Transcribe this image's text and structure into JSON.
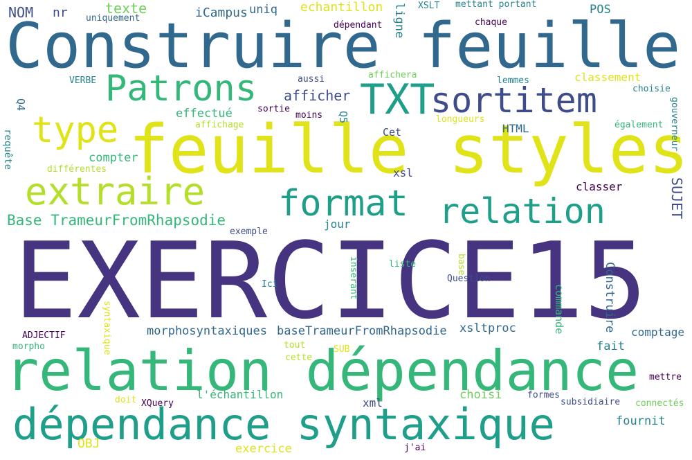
{
  "palette": {
    "indigo": "#463480",
    "purple": "#440154",
    "blue": "#31688e",
    "slate": "#3e4c8a",
    "teal": "#26828e",
    "green": "#1f9e89",
    "emerald": "#35b779",
    "lime": "#6ece58",
    "yellowgreen": "#b5de2b",
    "yellow": "#dfe318"
  },
  "words": [
    {
      "text": "EXERCICE15",
      "color": "#463480"
    },
    {
      "text": "Construire feuille",
      "color": "#31688e"
    },
    {
      "text": "feuille styles",
      "color": "#dfe318"
    },
    {
      "text": "relation dépendance",
      "color": "#35b779"
    },
    {
      "text": "dépendance syntaxique",
      "color": "#1f9e89"
    },
    {
      "text": "Patrons",
      "color": "#35b779"
    },
    {
      "text": "TXT",
      "color": "#1f9e89"
    },
    {
      "text": "sortitem",
      "color": "#3e4c8a"
    },
    {
      "text": "type",
      "color": "#dfe318"
    },
    {
      "text": "extraire",
      "color": "#b5de2b"
    },
    {
      "text": "format",
      "color": "#1f9e89"
    },
    {
      "text": "relation",
      "color": "#1f9e89"
    },
    {
      "text": "Base TrameurFromRhapsodie",
      "color": "#35b779"
    },
    {
      "text": "NOM",
      "color": "#3e4c8a"
    },
    {
      "text": "nr",
      "color": "#3e4c8a"
    },
    {
      "text": "texte",
      "color": "#6ece58"
    },
    {
      "text": "iCampus",
      "color": "#31688e"
    },
    {
      "text": "uniq",
      "color": "#31688e"
    },
    {
      "text": "echantillon",
      "color": "#dfe318"
    },
    {
      "text": "ligne",
      "color": "#26828e"
    },
    {
      "text": "XSLT",
      "color": "#26828e"
    },
    {
      "text": "mettant portant",
      "color": "#26828e"
    },
    {
      "text": "POS",
      "color": "#26828e"
    },
    {
      "text": "uniquement",
      "color": "#31688e"
    },
    {
      "text": "dépendant",
      "color": "#440154"
    },
    {
      "text": "chaque",
      "color": "#440154"
    },
    {
      "text": "afficher",
      "color": "#3e4c8a"
    },
    {
      "text": "classement",
      "color": "#dfe318"
    },
    {
      "text": "VERBE",
      "color": "#26828e"
    },
    {
      "text": "aussi",
      "color": "#3e4c8a"
    },
    {
      "text": "affichera",
      "color": "#6ece58"
    },
    {
      "text": "lemmes",
      "color": "#26828e"
    },
    {
      "text": "choisie",
      "color": "#26828e"
    },
    {
      "text": "Q4",
      "color": "#31688e"
    },
    {
      "text": "effectué",
      "color": "#35b779"
    },
    {
      "text": "sortie",
      "color": "#440154"
    },
    {
      "text": "moins",
      "color": "#440154"
    },
    {
      "text": "Q5",
      "color": "#26828e"
    },
    {
      "text": "longueurs",
      "color": "#dfe318"
    },
    {
      "text": "gouverneur",
      "color": "#26828e"
    },
    {
      "text": "affichage",
      "color": "#b5de2b"
    },
    {
      "text": "Cet",
      "color": "#3e4c8a"
    },
    {
      "text": "HTML",
      "color": "#31688e"
    },
    {
      "text": "également",
      "color": "#35b779"
    },
    {
      "text": "requête",
      "color": "#26828e"
    },
    {
      "text": "compter",
      "color": "#35b779"
    },
    {
      "text": "différentes",
      "color": "#b5de2b"
    },
    {
      "text": "xsl",
      "color": "#3e4c8a"
    },
    {
      "text": "SUJET",
      "color": "#3e4c8a"
    },
    {
      "text": "classer",
      "color": "#440154"
    },
    {
      "text": "jour",
      "color": "#26828e"
    },
    {
      "text": "exemple",
      "color": "#3e4c8a"
    },
    {
      "text": "liste",
      "color": "#35b779"
    },
    {
      "text": "base",
      "color": "#b5de2b"
    },
    {
      "text": "Construire",
      "color": "#31688e"
    },
    {
      "text": "inserant",
      "color": "#35b779"
    },
    {
      "text": "Ici",
      "color": "#26828e"
    },
    {
      "text": "Question",
      "color": "#3e4c8a"
    },
    {
      "text": "syntaxique",
      "color": "#dfe318"
    },
    {
      "text": "commande",
      "color": "#35b779"
    },
    {
      "text": "morphosyntaxiques",
      "color": "#31688e"
    },
    {
      "text": "baseTrameurFromRhapsodie",
      "color": "#31688e"
    },
    {
      "text": "xsltproc",
      "color": "#31688e"
    },
    {
      "text": "comptage",
      "color": "#31688e"
    },
    {
      "text": "ADJECTIF",
      "color": "#440154"
    },
    {
      "text": "morpho",
      "color": "#35b779"
    },
    {
      "text": "tout",
      "color": "#b5de2b"
    },
    {
      "text": "SUB",
      "color": "#dfe318"
    },
    {
      "text": "cette",
      "color": "#b5de2b"
    },
    {
      "text": "fait",
      "color": "#26828e"
    },
    {
      "text": "mettre",
      "color": "#440154"
    },
    {
      "text": "connectés",
      "color": "#6ece58"
    },
    {
      "text": "l'échantillon",
      "color": "#35b779"
    },
    {
      "text": "choisi",
      "color": "#6ece58"
    },
    {
      "text": "formes",
      "color": "#3e4c8a"
    },
    {
      "text": "subsidiaire",
      "color": "#3e4c8a"
    },
    {
      "text": "doit",
      "color": "#dfe318"
    },
    {
      "text": "XQuery",
      "color": "#440154"
    },
    {
      "text": "xml",
      "color": "#3e4c8a"
    },
    {
      "text": "fournit",
      "color": "#26828e"
    },
    {
      "text": "OBJ",
      "color": "#dfe318"
    },
    {
      "text": "exercice",
      "color": "#dfe318"
    },
    {
      "text": "j'ai",
      "color": "#440154"
    }
  ]
}
